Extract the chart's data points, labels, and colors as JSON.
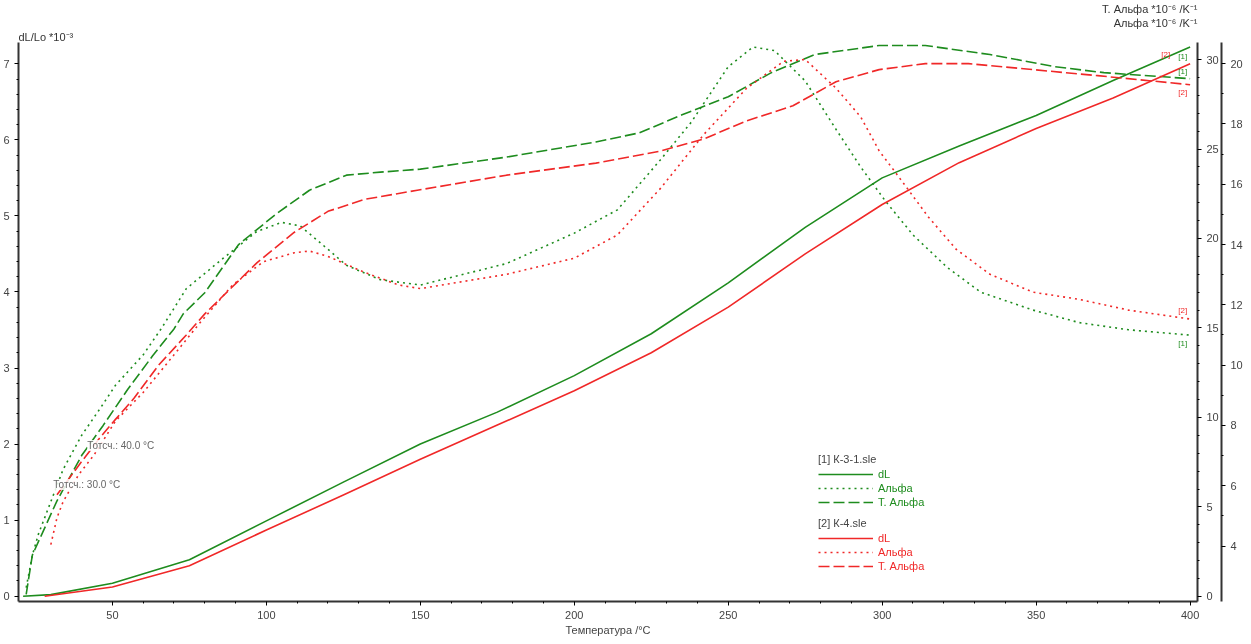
{
  "chart_data": {
    "type": "line",
    "xlabel": "Температура /°C",
    "ylabel": "dL/Lo *10⁻³",
    "y2label": "Альфа *10⁻⁶ /K⁻¹",
    "y3label": "Т. Альфа *10⁻⁶ /K⁻¹",
    "xlim": [
      19.5,
      402.4
    ],
    "xticks": [
      50,
      100,
      150,
      200,
      250,
      300,
      350,
      400
    ],
    "ylim": [
      -0.07,
      7.28
    ],
    "yticks": [
      0,
      1,
      2,
      3,
      4,
      5,
      6,
      7
    ],
    "y2lim": [
      -0.28,
      30.95
    ],
    "y2ticks": [
      0,
      5,
      10,
      15,
      20,
      25,
      30
    ],
    "y3lim": [
      2.16,
      20.7
    ],
    "y3ticks": [
      4,
      6,
      8,
      10,
      12,
      14,
      16,
      18,
      20
    ],
    "grid": false,
    "legend": "bottom right",
    "annotations": [
      "[1] К-3-1.sle",
      "[2] К-4.sle",
      {
        "text": "Тотсч.: 40.0 °C",
        "x": 41.8,
        "y": 1.98
      },
      {
        "text": "Тотсч.: 30.0 °C",
        "x": 30.8,
        "y": 1.47
      },
      "[1]",
      "[1]",
      "[1]",
      "[2]",
      "[2]",
      "[2]"
    ],
    "series": [
      {
        "name": "dL",
        "color": "#1e8c1e",
        "line_style": "solid",
        "x": [
          21,
          30,
          50,
          75,
          100,
          125,
          150,
          175,
          200,
          225,
          250,
          275,
          300,
          325,
          350,
          375,
          400
        ],
        "values": [
          0,
          0.02,
          0.17,
          0.48,
          0.99,
          1.5,
          2.0,
          2.42,
          2.9,
          3.45,
          4.12,
          4.85,
          5.5,
          5.92,
          6.32,
          6.78,
          7.22
        ]
      },
      {
        "name": "Альфа",
        "color": "#1e8c1e",
        "line_style": "dotted",
        "axis": "y2",
        "x": [
          22,
          24,
          26,
          30,
          34,
          40,
          46,
          51,
          60,
          66,
          74,
          86,
          97,
          105,
          111,
          120,
          126,
          137,
          150,
          178,
          200,
          214,
          228,
          238,
          250,
          258,
          265,
          275,
          285,
          293,
          301,
          310,
          321,
          332,
          349,
          364,
          380,
          400
        ],
        "values": [
          0.5,
          2.3,
          3.5,
          5.3,
          7.1,
          9.0,
          10.5,
          11.8,
          13.5,
          15.0,
          17.2,
          18.9,
          20.4,
          20.9,
          20.7,
          19.4,
          18.5,
          17.7,
          17.4,
          18.6,
          20.3,
          21.6,
          24.4,
          26.5,
          29.6,
          30.7,
          30.5,
          28.8,
          26.1,
          24.0,
          22.1,
          20.2,
          18.4,
          17.0,
          16.0,
          15.3,
          14.9,
          14.6
        ]
      },
      {
        "name": "Т. Альфа",
        "color": "#1e8c1e",
        "line_style": "dashed",
        "axis": "y3",
        "x": [
          22,
          24,
          32,
          40,
          47,
          55,
          63,
          70,
          73,
          80,
          91,
          103,
          114,
          126,
          137,
          150,
          178,
          207,
          221,
          235,
          250,
          264,
          278,
          299,
          314,
          335,
          356,
          372,
          400
        ],
        "values": [
          2.4,
          3.7,
          5.5,
          7.0,
          8.0,
          9.2,
          10.3,
          11.2,
          11.7,
          12.4,
          14.0,
          15.0,
          15.8,
          16.3,
          16.4,
          16.5,
          16.9,
          17.4,
          17.7,
          18.3,
          18.9,
          19.7,
          20.3,
          20.6,
          20.6,
          20.3,
          19.9,
          19.7,
          19.5
        ]
      },
      {
        "name": "dL",
        "color": "#f02828",
        "line_style": "solid",
        "x": [
          28,
          50,
          75,
          100,
          125,
          150,
          175,
          200,
          225,
          250,
          275,
          300,
          325,
          350,
          375,
          400
        ],
        "values": [
          0,
          0.12,
          0.4,
          0.87,
          1.33,
          1.8,
          2.25,
          2.7,
          3.2,
          3.8,
          4.5,
          5.15,
          5.7,
          6.15,
          6.55,
          7.0
        ]
      },
      {
        "name": "Альфа",
        "color": "#f02828",
        "line_style": "dotted",
        "axis": "y2",
        "x": [
          30,
          32,
          34,
          39,
          44,
          51,
          60,
          70,
          78,
          89,
          99,
          109,
          114,
          120,
          132,
          143,
          150,
          178,
          200,
          214,
          228,
          242,
          256,
          268,
          275,
          285,
          293,
          299,
          306,
          315,
          324,
          335,
          349,
          364,
          380,
          400
        ],
        "values": [
          2.9,
          4.4,
          5.3,
          6.8,
          7.9,
          9.8,
          11.4,
          13.5,
          15.2,
          17.4,
          18.7,
          19.2,
          19.3,
          19.0,
          18.1,
          17.4,
          17.2,
          18.0,
          18.9,
          20.2,
          22.8,
          25.8,
          28.4,
          29.9,
          30.0,
          28.4,
          26.8,
          24.9,
          23.3,
          21.2,
          19.4,
          18.0,
          17.0,
          16.6,
          16.0,
          15.5
        ]
      },
      {
        "name": "Т. Альфа",
        "color": "#f02828",
        "line_style": "dashed",
        "axis": "y3",
        "x": [
          32,
          40,
          46,
          51,
          57,
          65,
          74,
          80,
          86,
          97,
          109,
          120,
          132,
          149,
          178,
          207,
          228,
          242,
          256,
          271,
          285,
          299,
          314,
          328,
          349,
          370,
          400
        ],
        "values": [
          5.7,
          6.8,
          7.6,
          8.2,
          8.9,
          10.0,
          11.0,
          11.7,
          12.3,
          13.4,
          14.4,
          15.1,
          15.5,
          15.8,
          16.3,
          16.7,
          17.1,
          17.5,
          18.1,
          18.6,
          19.4,
          19.8,
          20.0,
          20.0,
          19.8,
          19.6,
          19.3
        ]
      }
    ]
  }
}
